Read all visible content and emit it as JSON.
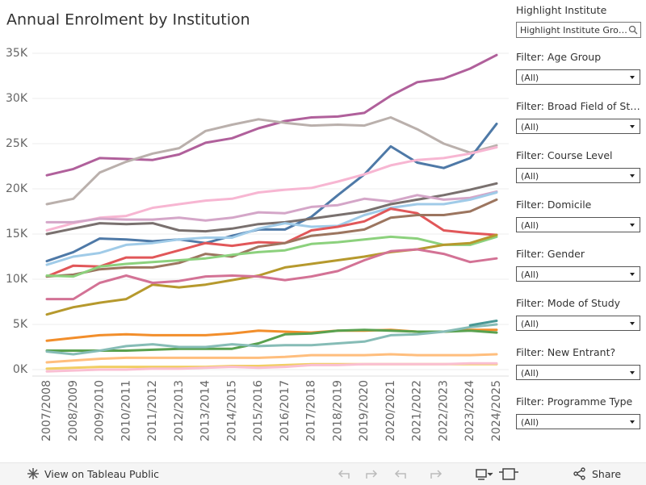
{
  "chart_data": {
    "type": "line",
    "title": "Annual Enrolment by Institution",
    "categories": [
      "2007/2008",
      "2008/2009",
      "2009/2010",
      "2010/2011",
      "2011/2012",
      "2012/2013",
      "2013/2014",
      "2014/2015",
      "2015/2016",
      "2016/2017",
      "2017/2018",
      "2018/2019",
      "2019/2020",
      "2020/2021",
      "2021/2022",
      "2022/2023",
      "2023/2024",
      "2024/2025"
    ],
    "ylim": [
      -500,
      35500
    ],
    "yticks": [
      {
        "value": 0,
        "label": "0K"
      },
      {
        "value": 5000,
        "label": "5K"
      },
      {
        "value": 10000,
        "label": "10K"
      },
      {
        "value": 15000,
        "label": "15K"
      },
      {
        "value": 20000,
        "label": "20K"
      },
      {
        "value": 25000,
        "label": "25K"
      },
      {
        "value": 30000,
        "label": "30K"
      },
      {
        "value": 35000,
        "label": "35K"
      }
    ],
    "grid": true,
    "series": [
      {
        "color": "#b0609b",
        "values": [
          21500,
          22200,
          23400,
          23300,
          23200,
          23800,
          25100,
          25600,
          26700,
          27500,
          27900,
          28000,
          28400,
          30300,
          31800,
          32200,
          33300,
          34800
        ]
      },
      {
        "color": "#bab0ac",
        "values": [
          18300,
          18900,
          21800,
          23000,
          23900,
          24500,
          26400,
          27100,
          27700,
          27300,
          27000,
          27100,
          27000,
          27900,
          26600,
          25000,
          24000,
          24800
        ]
      },
      {
        "color": "#4e79a7",
        "values": [
          12000,
          13000,
          14500,
          14400,
          14200,
          14400,
          14000,
          14800,
          15500,
          15500,
          16900,
          19300,
          21600,
          24700,
          22900,
          22300,
          23400,
          27200
        ]
      },
      {
        "color": "#f7b6d2",
        "values": [
          15400,
          16200,
          16800,
          17000,
          17900,
          18300,
          18700,
          18900,
          19600,
          19900,
          20100,
          20800,
          21600,
          22600,
          23200,
          23400,
          23900,
          24600
        ]
      },
      {
        "color": "#79706e",
        "values": [
          15000,
          15600,
          16200,
          16100,
          16200,
          15400,
          15300,
          15600,
          16100,
          16300,
          16700,
          17100,
          17500,
          18300,
          18800,
          19300,
          19900,
          20600
        ]
      },
      {
        "color": "#d4a6c8",
        "values": [
          16300,
          16300,
          16700,
          16600,
          16600,
          16800,
          16500,
          16800,
          17400,
          17300,
          18000,
          18200,
          18900,
          18600,
          19300,
          18800,
          19000,
          19700
        ]
      },
      {
        "color": "#a0cbe8",
        "values": [
          11600,
          12500,
          12900,
          13800,
          14000,
          14400,
          14600,
          14600,
          15600,
          16200,
          15800,
          15900,
          17100,
          17900,
          18300,
          18300,
          18800,
          19600
        ]
      },
      {
        "color": "#e15759",
        "values": [
          10300,
          11500,
          11400,
          12400,
          12400,
          13200,
          14000,
          13700,
          14100,
          14000,
          15400,
          15800,
          16400,
          17800,
          17300,
          15400,
          15100,
          14900
        ]
      },
      {
        "color": "#9c755f",
        "values": [
          10300,
          10500,
          11100,
          11300,
          11300,
          11800,
          12800,
          12500,
          13600,
          14000,
          14800,
          15100,
          15500,
          16800,
          17100,
          17100,
          17500,
          18800
        ]
      },
      {
        "color": "#8cd17d",
        "values": [
          10400,
          10300,
          11400,
          11700,
          11900,
          12100,
          12300,
          12700,
          13000,
          13200,
          13900,
          14100,
          14400,
          14700,
          14500,
          13800,
          13800,
          14700
        ]
      },
      {
        "color": "#b6992d",
        "values": [
          6100,
          6900,
          7400,
          7800,
          9400,
          9100,
          9400,
          9900,
          10400,
          11300,
          11700,
          12100,
          12500,
          13000,
          13300,
          13800,
          14000,
          14900
        ]
      },
      {
        "color": "#d37295",
        "values": [
          7800,
          7800,
          9600,
          10400,
          9600,
          9800,
          10300,
          10400,
          10300,
          9900,
          10300,
          10900,
          12100,
          13100,
          13300,
          12800,
          11900,
          12300
        ]
      },
      {
        "color": "#f28e2b",
        "values": [
          3200,
          3500,
          3800,
          3900,
          3800,
          3800,
          3800,
          4000,
          4300,
          4200,
          4100,
          4300,
          4300,
          4400,
          4200,
          4200,
          4400,
          4400
        ]
      },
      {
        "color": "#59a14f",
        "values": [
          2100,
          2100,
          2100,
          2100,
          2200,
          2300,
          2300,
          2300,
          2900,
          3900,
          4000,
          4300,
          4400,
          4300,
          4200,
          4200,
          4300,
          4100
        ]
      },
      {
        "color": "#86bcb6",
        "values": [
          2000,
          1700,
          2100,
          2600,
          2800,
          2500,
          2500,
          2800,
          2600,
          2700,
          2700,
          2900,
          3100,
          3800,
          3900,
          4200,
          4700,
          5000
        ]
      },
      {
        "color": "#499894",
        "values": [
          null,
          null,
          null,
          null,
          null,
          null,
          null,
          null,
          null,
          null,
          null,
          null,
          null,
          null,
          null,
          null,
          4900,
          5400
        ]
      },
      {
        "color": "#ffbe7d",
        "values": [
          800,
          1000,
          1200,
          1300,
          1300,
          1300,
          1300,
          1300,
          1300,
          1400,
          1600,
          1600,
          1600,
          1700,
          1600,
          1600,
          1600,
          1700
        ]
      },
      {
        "color": "#f1ce63",
        "values": [
          100,
          200,
          300,
          300,
          300,
          300,
          300,
          400,
          400,
          500,
          600,
          600,
          600,
          600,
          600,
          600,
          600,
          600
        ]
      },
      {
        "color": "#fabfd2",
        "values": [
          -200,
          -100,
          0,
          0,
          100,
          100,
          200,
          300,
          200,
          300,
          500,
          500,
          600,
          600,
          600,
          600,
          700,
          700
        ]
      }
    ]
  },
  "sidebar": {
    "highlight": {
      "title": "Highlight Institute",
      "placeholder": "Highlight Institute Gro…"
    },
    "filters": [
      {
        "title": "Filter: Age Group",
        "value": "(All)"
      },
      {
        "title": "Filter: Broad Field of St…",
        "value": "(All)"
      },
      {
        "title": "Filter: Course Level",
        "value": "(All)"
      },
      {
        "title": "Filter: Domicile",
        "value": "(All)"
      },
      {
        "title": "Filter: Gender",
        "value": "(All)"
      },
      {
        "title": "Filter: Mode of Study",
        "value": "(All)"
      },
      {
        "title": "Filter: New Entrant?",
        "value": "(All)"
      },
      {
        "title": "Filter: Programme Type",
        "value": "(All)"
      }
    ]
  },
  "footer": {
    "link": "View on Tableau Public",
    "share": "Share"
  }
}
